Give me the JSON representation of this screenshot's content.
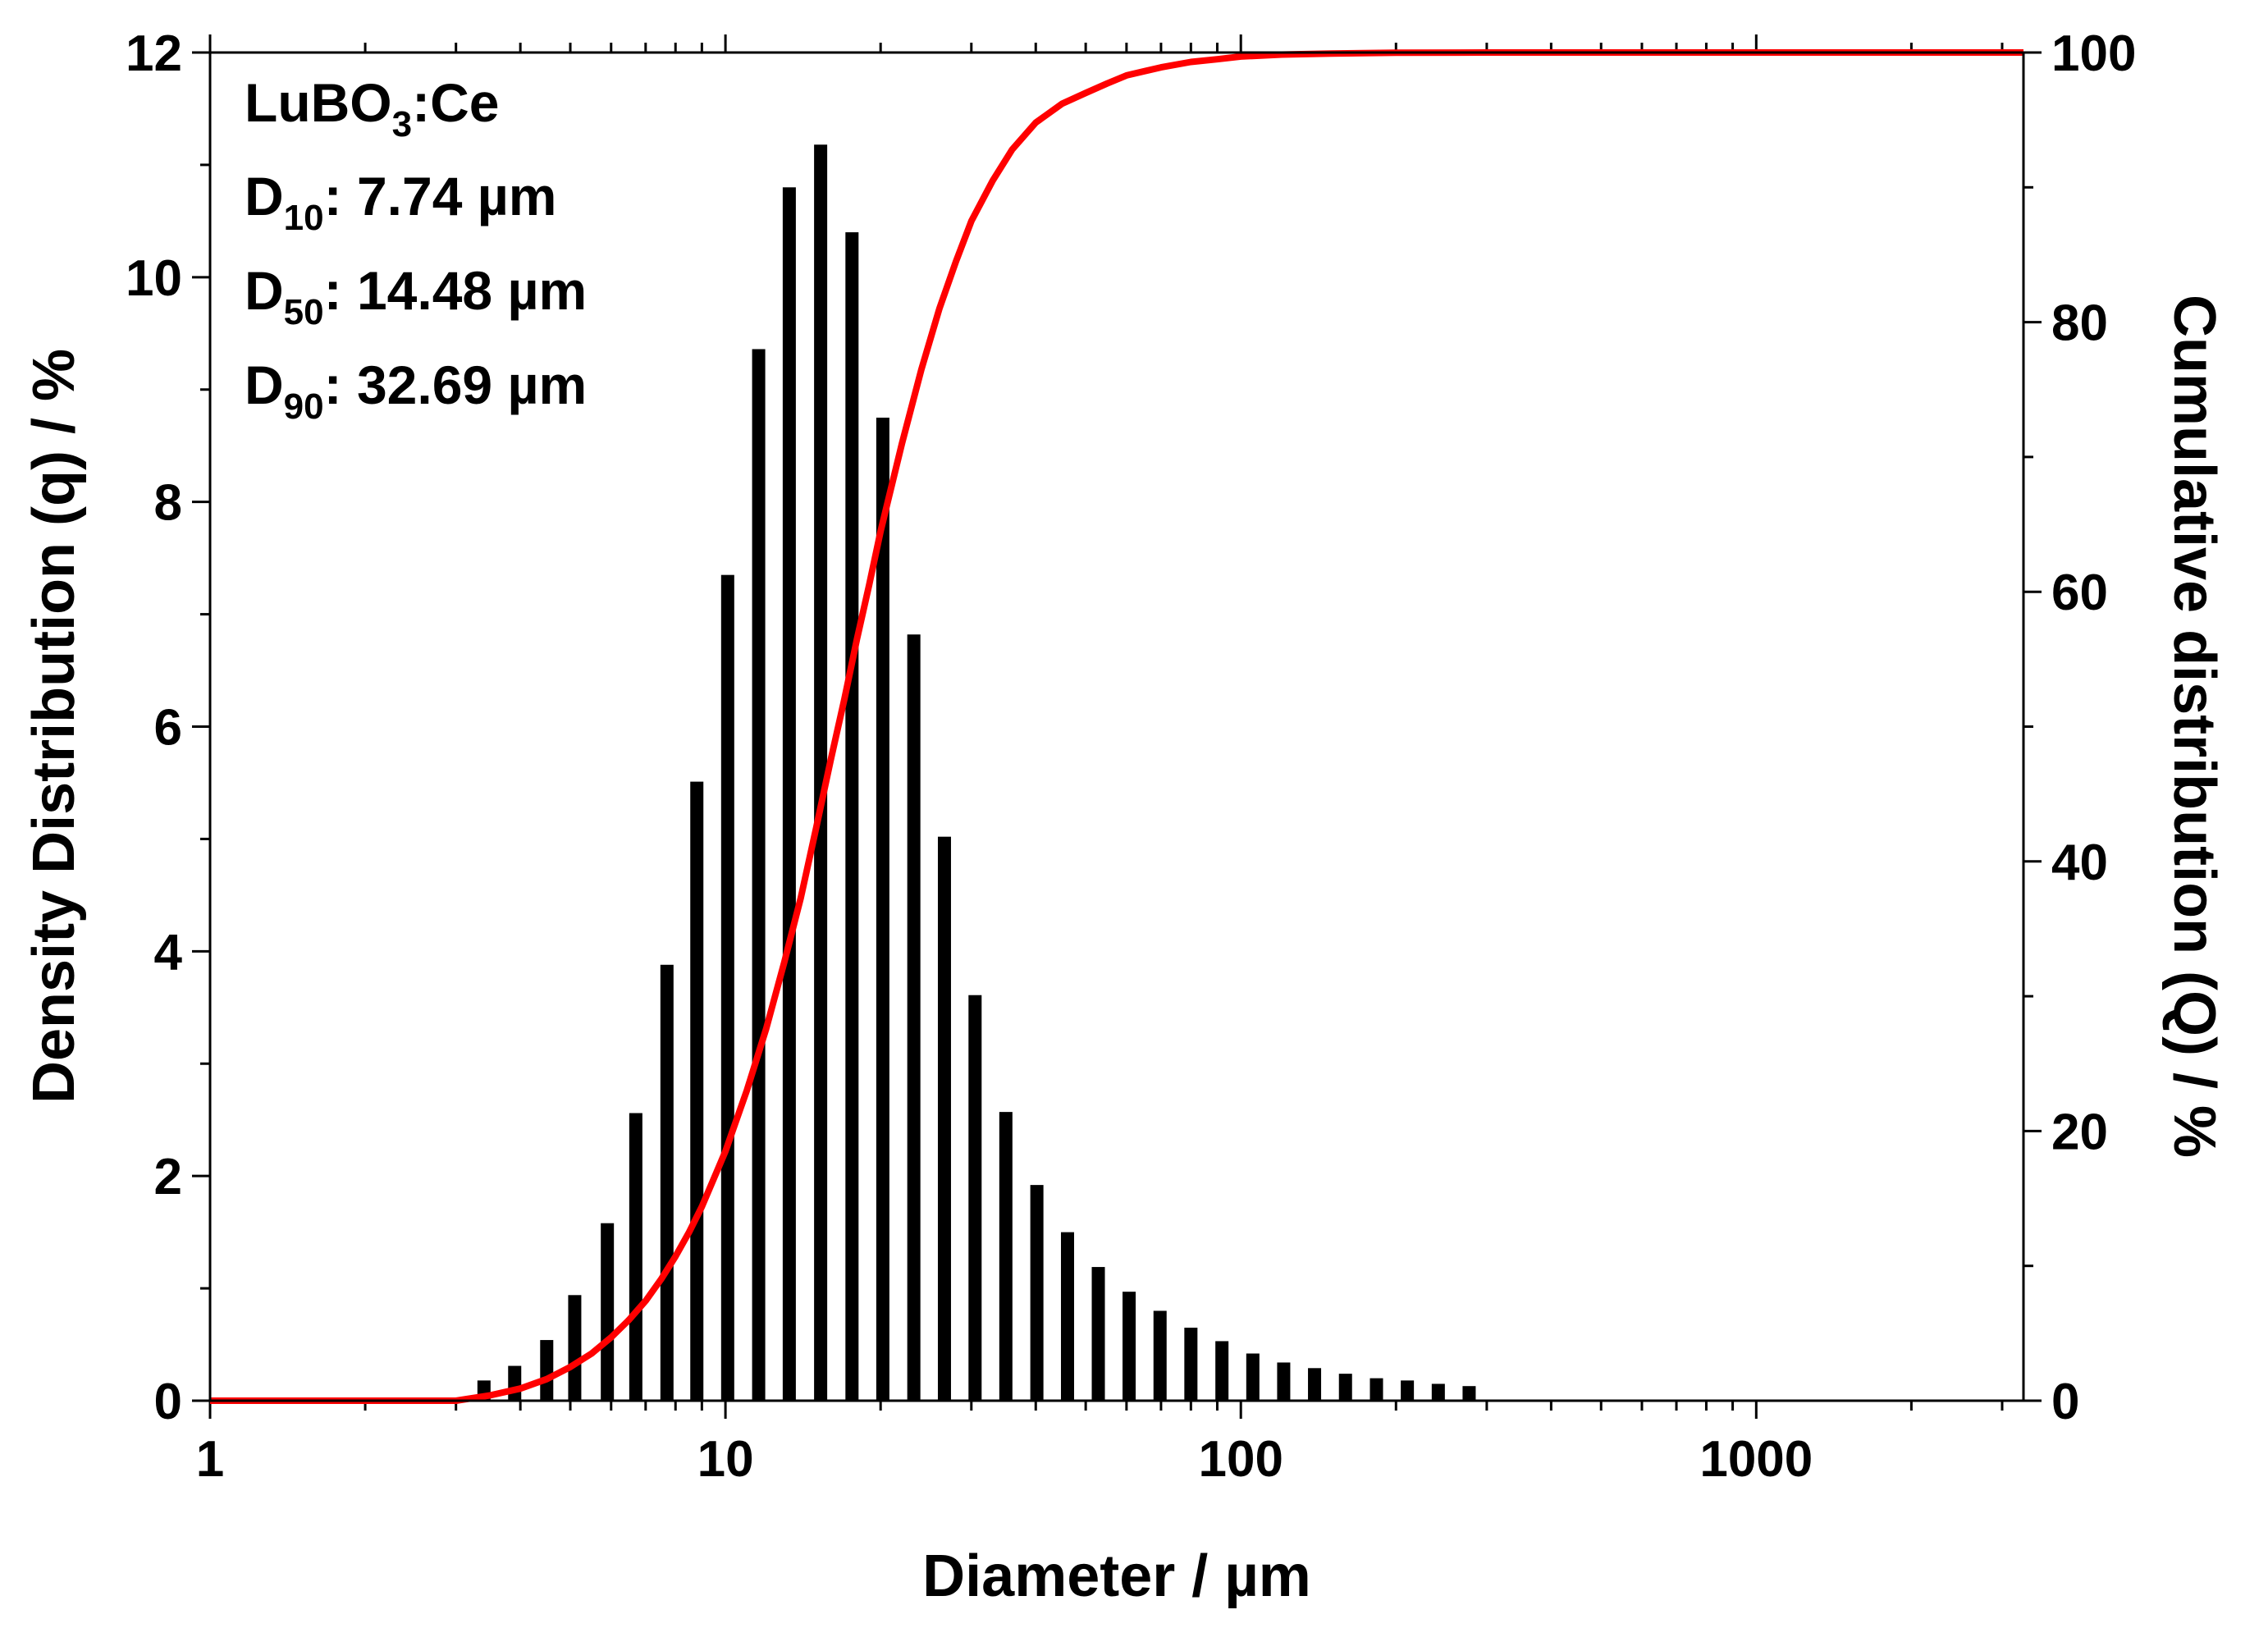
{
  "chart_data": {
    "type": "bar",
    "annotations": {
      "sample": {
        "base": "LuBO",
        "sub": "3",
        "rest": ":Ce"
      },
      "d10": {
        "base": "D",
        "sub": "10",
        "rest": ": 7.74 µm"
      },
      "d50": {
        "base": "D",
        "sub": "50",
        "rest": ": 14.48 µm"
      },
      "d90": {
        "base": "D",
        "sub": "90",
        "rest": ":  32.69 µm"
      }
    },
    "xlabel": "Diameter / µm",
    "ylabel": "Density Distribution (q) / %",
    "y2label": "Cumulative distribution (Q) / %",
    "xscale": "log",
    "xlim": [
      1,
      3300
    ],
    "ylim": [
      0,
      12
    ],
    "y2lim": [
      0,
      100
    ],
    "x_tick_labels": [
      "1",
      "10",
      "100",
      "1000"
    ],
    "y_tick_labels": [
      "0",
      "2",
      "4",
      "6",
      "8",
      "10",
      "12"
    ],
    "y2_tick_labels": [
      "0",
      "20",
      "40",
      "60",
      "80",
      "100"
    ],
    "grid": false,
    "colors": {
      "density": "#000000",
      "cumulative": "#ff0000"
    },
    "series": [
      {
        "type": "bar",
        "axis": "left",
        "x": [
          3.4,
          3.9,
          4.5,
          5.1,
          5.9,
          6.7,
          7.7,
          8.8,
          10.1,
          11.6,
          13.3,
          15.3,
          17.6,
          20.2,
          23.2,
          26.6,
          30.5,
          35.0,
          40.2,
          46.1,
          52.9,
          60.7,
          69.7,
          80.0,
          91.9,
          105.5,
          121.1,
          139.0,
          159.6,
          183.3,
          210.4,
          241.6,
          277.3
        ],
        "values": [
          0.18,
          0.31,
          0.54,
          0.94,
          1.58,
          2.56,
          3.88,
          5.51,
          7.35,
          9.36,
          10.8,
          11.18,
          10.4,
          8.75,
          6.82,
          5.02,
          3.61,
          2.57,
          1.92,
          1.5,
          1.19,
          0.97,
          0.8,
          0.65,
          0.53,
          0.42,
          0.34,
          0.29,
          0.24,
          0.2,
          0.18,
          0.15,
          0.13
        ]
      },
      {
        "type": "line",
        "axis": "right",
        "x": [
          1,
          2,
          3,
          3.5,
          4,
          4.5,
          5,
          5.5,
          6,
          6.5,
          7,
          7.5,
          8,
          8.5,
          9,
          9.5,
          10,
          11,
          12,
          13,
          14,
          15,
          16,
          17,
          18,
          19,
          20,
          22,
          24,
          26,
          28,
          30,
          33,
          36,
          40,
          45,
          50,
          55,
          60,
          70,
          80,
          90,
          100,
          120,
          150,
          200,
          300,
          500,
          1000,
          3300
        ],
        "values": [
          0,
          0,
          0,
          0.4,
          0.9,
          1.6,
          2.5,
          3.5,
          4.7,
          6.0,
          7.4,
          9.0,
          10.7,
          12.5,
          14.4,
          16.5,
          18.5,
          23.0,
          27.6,
          32.5,
          37.3,
          42.5,
          47.5,
          52.0,
          56.5,
          60.5,
          64.5,
          71.0,
          76.5,
          81.0,
          84.5,
          87.5,
          90.5,
          92.8,
          94.8,
          96.2,
          97.0,
          97.7,
          98.3,
          98.9,
          99.3,
          99.5,
          99.7,
          99.85,
          99.93,
          99.98,
          100,
          100,
          100,
          100
        ]
      }
    ]
  }
}
